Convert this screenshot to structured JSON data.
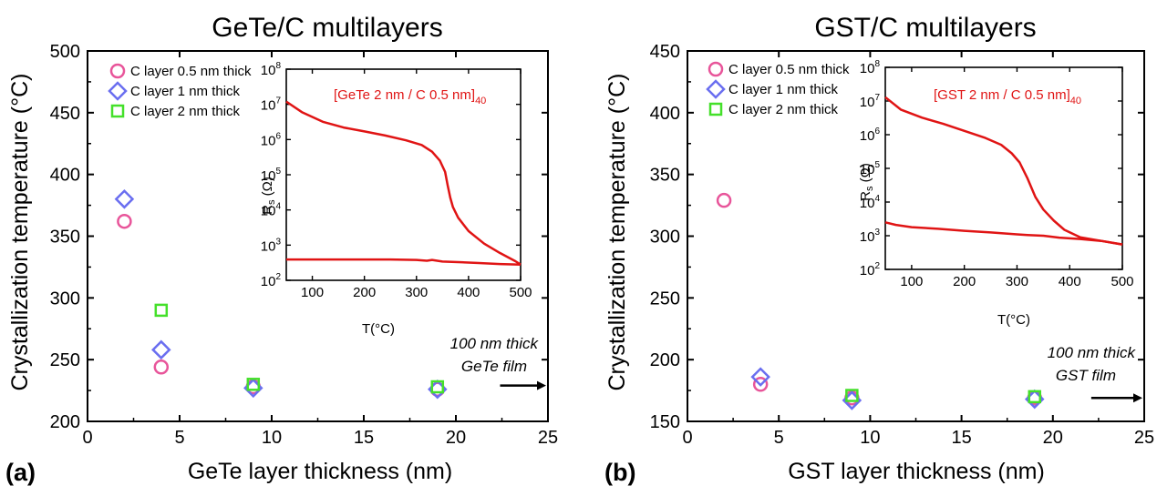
{
  "colors": {
    "c05": "#e8559a",
    "c1": "#6a6ef0",
    "c2": "#44e02a",
    "inset_curve": "#e01414",
    "axis": "#000000"
  },
  "chart_data": [
    {
      "type": "scatter",
      "panel": "(a)",
      "title": "GeTe/C multilayers",
      "xlabel": "GeTe layer thickness (nm)",
      "ylabel": "Crystallization temperature (°C)",
      "xlim": [
        0,
        25
      ],
      "ylim": [
        200,
        500
      ],
      "xticks": [
        "0",
        "5",
        "10",
        "15",
        "20",
        "25"
      ],
      "yticks": [
        "200",
        "250",
        "300",
        "350",
        "400",
        "450",
        "500"
      ],
      "legend_position": "top-left",
      "series": [
        {
          "name": "C layer 0.5 nm thick",
          "marker": "circle",
          "color_key": "c05",
          "x": [
            2,
            4,
            9,
            19
          ],
          "y": [
            362,
            244,
            228,
            226
          ]
        },
        {
          "name": "C layer 1 nm thick",
          "marker": "diamond",
          "color_key": "c1",
          "x": [
            2,
            4,
            9,
            19
          ],
          "y": [
            380,
            258,
            227,
            226
          ]
        },
        {
          "name": "C layer 2 nm thick",
          "marker": "square",
          "color_key": "c2",
          "x": [
            4,
            9,
            19
          ],
          "y": [
            290,
            230,
            228
          ]
        }
      ],
      "annotation": {
        "line1": "100 nm thick",
        "line2": "GeTe film",
        "arrow_from_x": 22.4,
        "arrow_to_x": 25,
        "arrow_y": 229
      },
      "inset": {
        "type": "line",
        "title_main": "[GeTe 2 nm / C 0.5 nm]",
        "title_sub": "40",
        "xlabel": "T(°C)",
        "ylabel_main": "R",
        "ylabel_sub": "s",
        "ylabel_unit": " (Ω)",
        "yscale": "log",
        "xlim": [
          50,
          500
        ],
        "ylim_exponents": [
          2,
          8
        ],
        "xticks": [
          "100",
          "200",
          "300",
          "400",
          "500"
        ],
        "ytick_base": "10",
        "ytick_exponents": [
          "2",
          "3",
          "4",
          "5",
          "6",
          "7",
          "8"
        ],
        "heating": {
          "x": [
            50,
            80,
            120,
            160,
            200,
            240,
            280,
            310,
            330,
            345,
            355,
            360,
            365,
            370,
            380,
            400,
            430,
            460,
            490,
            500
          ],
          "y": [
            12000000.0,
            6000000.0,
            3200000.0,
            2200000.0,
            1700000.0,
            1300000.0,
            950000.0,
            700000.0,
            450000.0,
            250000.0,
            120000.0,
            50000.0,
            22000.0,
            12000.0,
            6000.0,
            2500.0,
            1100.0,
            600.0,
            350.0,
            280.0
          ]
        },
        "cooling": {
          "x": [
            500,
            460,
            420,
            380,
            350,
            330,
            320,
            300,
            250,
            200,
            150,
            100,
            50
          ],
          "y": [
            280.0,
            290.0,
            310.0,
            330.0,
            340.0,
            380.0,
            360.0,
            380.0,
            390.0,
            390.0,
            390.0,
            390.0,
            390.0
          ]
        }
      }
    },
    {
      "type": "scatter",
      "panel": "(b)",
      "title": "GST/C multilayers",
      "xlabel": "GST layer thickness (nm)",
      "ylabel": "Crystallization temperature (°C)",
      "xlim": [
        0,
        25
      ],
      "ylim": [
        150,
        450
      ],
      "xticks": [
        "0",
        "5",
        "10",
        "15",
        "20",
        "25"
      ],
      "yticks": [
        "150",
        "200",
        "250",
        "300",
        "350",
        "400",
        "450"
      ],
      "legend_position": "top-left",
      "series": [
        {
          "name": "C layer 0.5 nm thick",
          "marker": "circle",
          "color_key": "c05",
          "x": [
            2,
            4,
            9,
            19
          ],
          "y": [
            329,
            180,
            169,
            169
          ]
        },
        {
          "name": "C layer 1 nm thick",
          "marker": "diamond",
          "color_key": "c1",
          "x": [
            4,
            9,
            19
          ],
          "y": [
            186,
            167,
            168
          ]
        },
        {
          "name": "C layer 2 nm thick",
          "marker": "square",
          "color_key": "c2",
          "x": [
            9,
            19
          ],
          "y": [
            171,
            170
          ]
        }
      ],
      "annotation": {
        "line1": "100 nm thick",
        "line2": "GST film",
        "arrow_from_x": 22.1,
        "arrow_to_x": 25,
        "arrow_y": 169
      },
      "inset": {
        "type": "line",
        "title_main": "[GST 2 nm / C 0.5 nm]",
        "title_sub": "40",
        "xlabel": "T(°C)",
        "ylabel_main": "R",
        "ylabel_sub": "s",
        "ylabel_unit": " (Ω)",
        "yscale": "log",
        "xlim": [
          50,
          500
        ],
        "ylim_exponents": [
          2,
          8
        ],
        "xticks": [
          "100",
          "200",
          "300",
          "400",
          "500"
        ],
        "ytick_base": "10",
        "ytick_exponents": [
          "2",
          "3",
          "4",
          "5",
          "6",
          "7",
          "8"
        ],
        "heating": {
          "x": [
            50,
            80,
            120,
            160,
            200,
            240,
            270,
            290,
            305,
            320,
            335,
            350,
            370,
            390,
            420,
            460,
            500
          ],
          "y": [
            13000000.0,
            5500000.0,
            3200000.0,
            2100000.0,
            1300000.0,
            800000.0,
            500000.0,
            280000.0,
            150000.0,
            50000.0,
            14000.0,
            6000.0,
            2800.0,
            1500.0,
            900.0,
            700.0,
            550.0
          ]
        },
        "cooling": {
          "x": [
            500,
            460,
            420,
            380,
            350,
            320,
            300,
            250,
            200,
            150,
            100,
            70,
            50
          ],
          "y": [
            550.0,
            700.0,
            800.0,
            880.0,
            1000.0,
            1050.0,
            1100.0,
            1250.0,
            1400.0,
            1600.0,
            1800.0,
            2100.0,
            2500.0
          ]
        }
      }
    }
  ]
}
